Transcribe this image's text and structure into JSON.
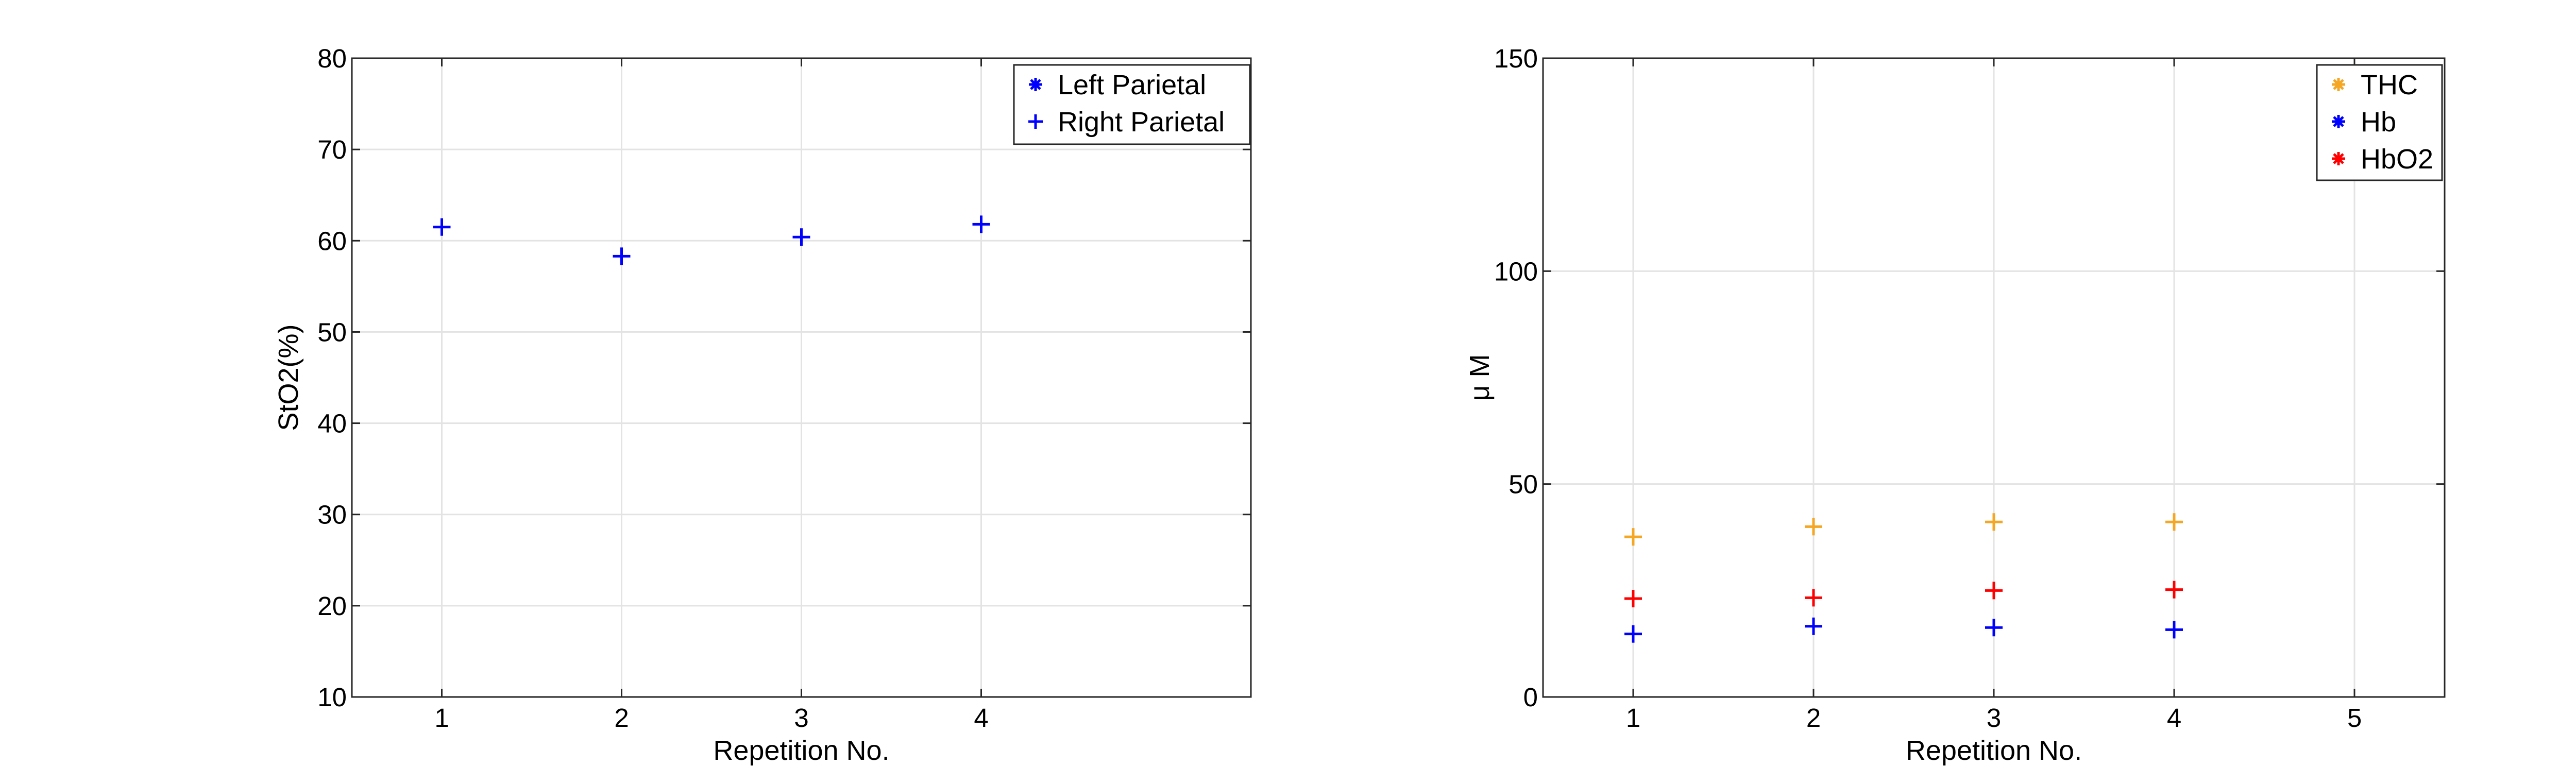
{
  "chart_data": [
    {
      "type": "scatter",
      "title": "",
      "xlabel": "Repetition No.",
      "ylabel": "StO2(%)",
      "xlim": [
        0.5,
        5.5
      ],
      "ylim": [
        10,
        80
      ],
      "xticks": [
        1,
        2,
        3,
        4
      ],
      "yticks": [
        10,
        20,
        30,
        40,
        50,
        60,
        70,
        80
      ],
      "grid": true,
      "legend_position": "top-right",
      "series": [
        {
          "name": "Left Parietal",
          "marker": "asterisk",
          "color": "#0000ff",
          "x": [],
          "y": []
        },
        {
          "name": "Right Parietal",
          "marker": "plus",
          "color": "#0000ff",
          "x": [
            1,
            2,
            3,
            4
          ],
          "y": [
            61.5,
            58.3,
            60.4,
            61.8
          ]
        }
      ]
    },
    {
      "type": "scatter",
      "title": "",
      "xlabel": "Repetition No.",
      "ylabel": "μ M",
      "xlim": [
        0.5,
        5.5
      ],
      "ylim": [
        0,
        150
      ],
      "xticks": [
        1,
        2,
        3,
        4,
        5
      ],
      "yticks": [
        0,
        50,
        100,
        150
      ],
      "grid": true,
      "legend_position": "top-right",
      "series": [
        {
          "name": "THC",
          "marker": "plus",
          "color": "#f5a623",
          "x": [
            1,
            2,
            3,
            4
          ],
          "y": [
            37.6,
            40.0,
            41.1,
            41.1
          ]
        },
        {
          "name": "Hb",
          "marker": "plus",
          "color": "#0000ff",
          "x": [
            1,
            2,
            3,
            4
          ],
          "y": [
            14.8,
            16.6,
            16.3,
            15.8
          ]
        },
        {
          "name": "HbO2",
          "marker": "plus",
          "color": "#ff0000",
          "x": [
            1,
            2,
            3,
            4
          ],
          "y": [
            23.1,
            23.3,
            25.0,
            25.2
          ]
        }
      ]
    }
  ]
}
